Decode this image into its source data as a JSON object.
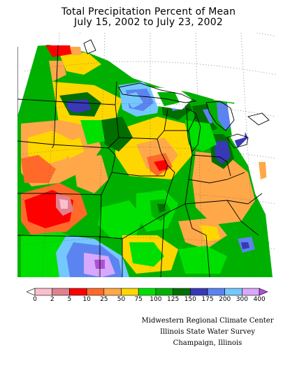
{
  "title": {
    "line1": "Total Precipitation Percent of Mean",
    "line2": "July 15, 2002 to July 23, 2002"
  },
  "legend": {
    "ticks": [
      "0",
      "2",
      "5",
      "10",
      "25",
      "50",
      "75",
      "100",
      "125",
      "150",
      "175",
      "200",
      "300",
      "400"
    ],
    "colors": [
      "#ffffff",
      "#f9c0cc",
      "#e0828e",
      "#ff0000",
      "#ff6a2a",
      "#ffa84a",
      "#ffd700",
      "#00e000",
      "#00b000",
      "#006f00",
      "#3838b8",
      "#5c84f0",
      "#74c8ff",
      "#d8a8ff",
      "#b050d8"
    ]
  },
  "credits": {
    "line1": "Midwestern Regional Climate Center",
    "line2": "Illinois State Water Survey",
    "line3": "Champaign, Illinois"
  }
}
